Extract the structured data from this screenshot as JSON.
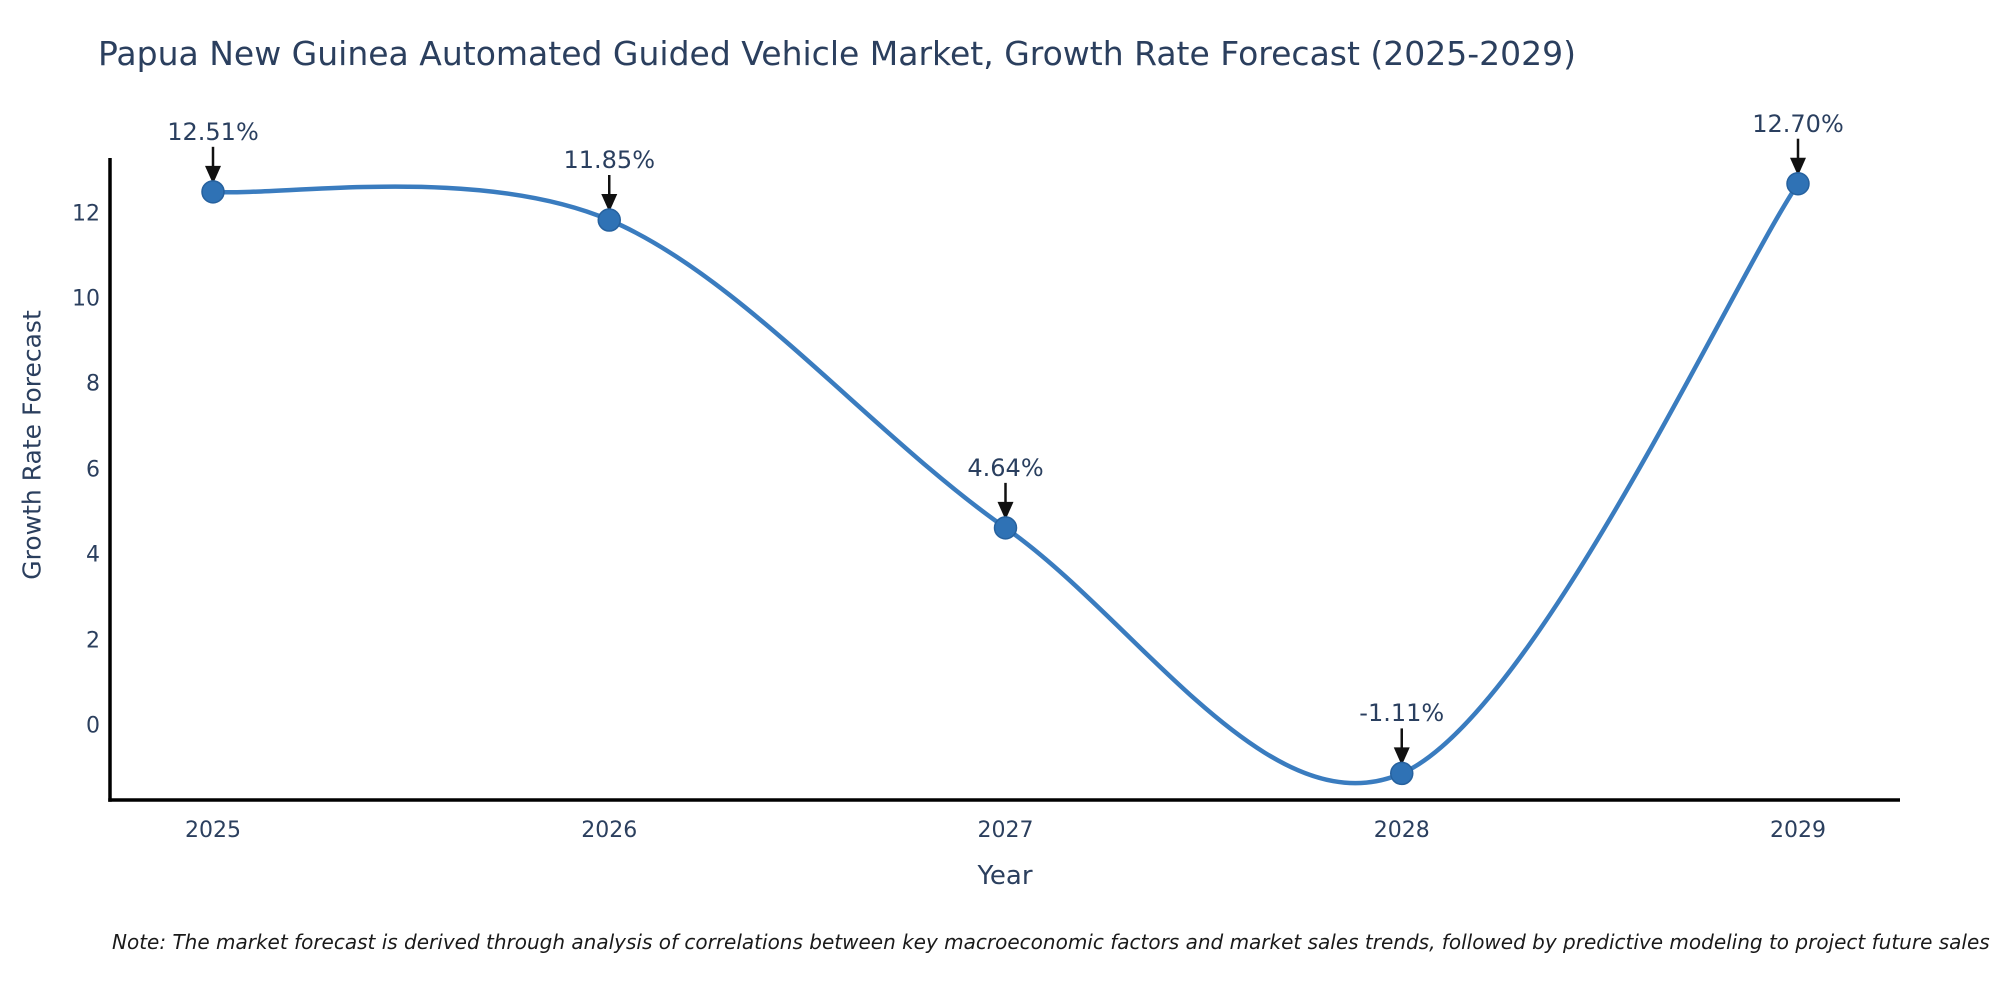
{
  "chart": {
    "title": "Papua New Guinea Automated Guided Vehicle Market, Growth Rate Forecast (2025-2029)",
    "xlabel": "Year",
    "ylabel": "Growth Rate Forecast"
  },
  "note": "Note: The market forecast is derived through analysis of correlations between key macroeconomic factors and market sales trends, followed by predictive modeling to project future sales",
  "chart_data": {
    "type": "line",
    "title": "Papua New Guinea Automated Guided Vehicle Market, Growth Rate Forecast (2025-2029)",
    "xlabel": "Year",
    "ylabel": "Growth Rate Forecast",
    "x": [
      2025,
      2026,
      2027,
      2028,
      2029
    ],
    "categories": [
      "2025",
      "2026",
      "2027",
      "2028",
      "2029"
    ],
    "values": [
      12.51,
      11.85,
      4.64,
      -1.11,
      12.7
    ],
    "point_labels": [
      "12.51%",
      "11.85%",
      "4.64%",
      "-1.11%",
      "12.70%"
    ],
    "yticks": [
      0,
      2,
      4,
      6,
      8,
      10,
      12
    ],
    "ylim": [
      -1.75,
      13.3
    ],
    "line_shape": "spline",
    "grid": false,
    "legend": "none",
    "colors": {
      "line": "#3a7cbf",
      "marker_fill": "#2f72b5",
      "marker_edge": "#26619e",
      "axis_line": "#000000",
      "text": "#2b3f5e",
      "annotation_text": "#2a3f5f",
      "arrow": "#111111",
      "background": "#ffffff"
    }
  }
}
